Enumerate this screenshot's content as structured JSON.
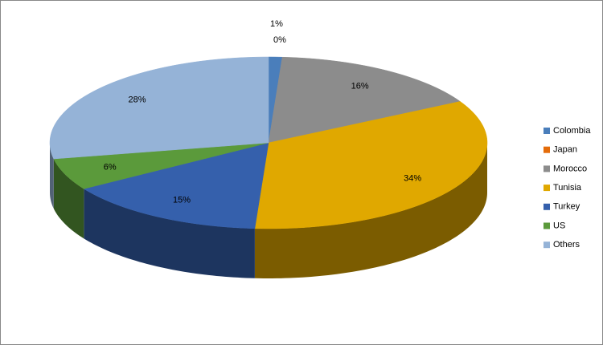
{
  "chart_data": {
    "type": "pie",
    "categories": [
      "Colombia",
      "Japan",
      "Morocco",
      "Tunisia",
      "Turkey",
      "US",
      "Others"
    ],
    "values": [
      1,
      0,
      16,
      34,
      15,
      6,
      28
    ],
    "value_labels": [
      "1%",
      "0%",
      "16%",
      "34%",
      "15%",
      "6%",
      "28%"
    ],
    "colors": [
      "#4a7ebb",
      "#e46c0a",
      "#8c8c8c",
      "#e0a800",
      "#3560ac",
      "#5b9a3b",
      "#95b3d7"
    ],
    "legend": "right"
  }
}
